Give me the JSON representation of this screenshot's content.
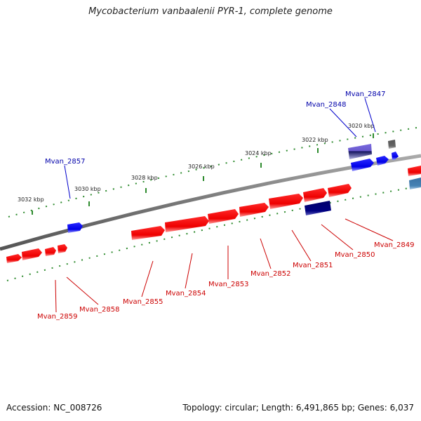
{
  "title": "Mycobacterium vanbaalenii PYR-1, complete genome",
  "footer": {
    "accession": "Accession: NC_008726",
    "stats": "Topology: circular; Length: 6,491,865 bp; Genes: 6,037"
  },
  "colors": {
    "forward": "#ff0000",
    "reverse": "#0000ff",
    "dark": "#000080",
    "gray": "#666666",
    "steel": "#4682b4",
    "slate": "#6a5acd",
    "backbone": "#777777",
    "ticks": "#2e8b2e",
    "fwd_label": "#cc0000",
    "rev_label": "#0000aa"
  },
  "ticks": [
    {
      "kbp": 3020,
      "label": "3020 kbp"
    },
    {
      "kbp": 3022,
      "label": "3022 kbp"
    },
    {
      "kbp": 3024,
      "label": "3024 kbp"
    },
    {
      "kbp": 3026,
      "label": "3026 kbp"
    },
    {
      "kbp": 3028,
      "label": "3028 kbp"
    },
    {
      "kbp": 3030,
      "label": "3030 kbp"
    },
    {
      "kbp": 3032,
      "label": "3032 kbp"
    }
  ],
  "gene_labels": [
    {
      "name": "Mvan_2847",
      "strand": "reverse"
    },
    {
      "name": "Mvan_2848",
      "strand": "reverse"
    },
    {
      "name": "Mvan_2857",
      "strand": "reverse"
    },
    {
      "name": "Mvan_2849",
      "strand": "forward"
    },
    {
      "name": "Mvan_2850",
      "strand": "forward"
    },
    {
      "name": "Mvan_2851",
      "strand": "forward"
    },
    {
      "name": "Mvan_2852",
      "strand": "forward"
    },
    {
      "name": "Mvan_2853",
      "strand": "forward"
    },
    {
      "name": "Mvan_2854",
      "strand": "forward"
    },
    {
      "name": "Mvan_2855",
      "strand": "forward"
    },
    {
      "name": "Mvan_2858",
      "strand": "forward"
    },
    {
      "name": "Mvan_2859",
      "strand": "forward"
    }
  ]
}
